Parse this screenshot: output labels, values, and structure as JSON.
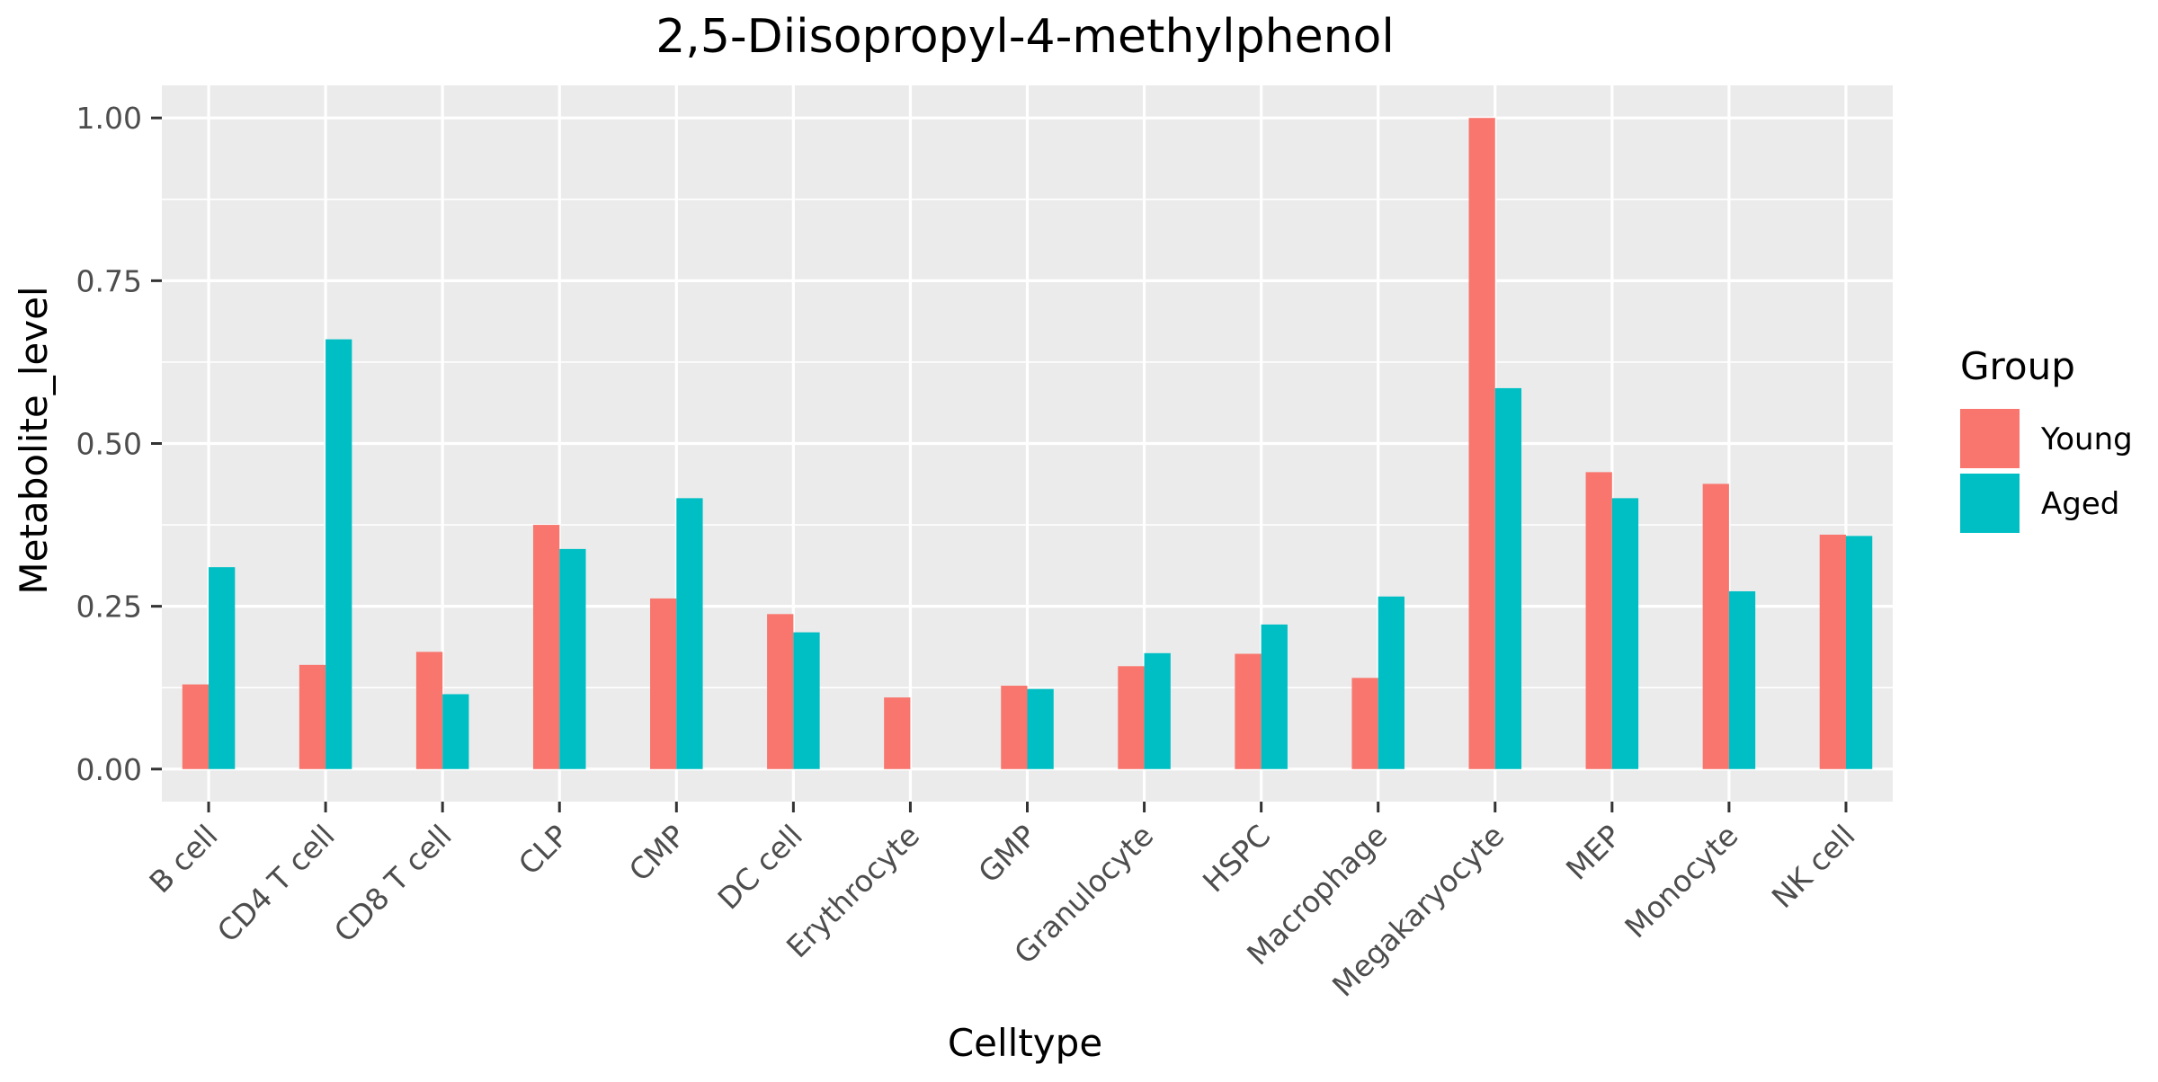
{
  "chart_data": {
    "type": "bar",
    "title": "2,5-Diisopropyl-4-methylphenol",
    "xlabel": "Celltype",
    "ylabel": "Metabolite_level",
    "ylim": [
      -0.05,
      1.05
    ],
    "yticks": [
      0.0,
      0.25,
      0.5,
      0.75,
      1.0
    ],
    "ytick_labels": [
      "0.00",
      "0.25",
      "0.50",
      "0.75",
      "1.00"
    ],
    "grid": true,
    "legend": {
      "title": "Group",
      "position": "right"
    },
    "categories": [
      "B cell",
      "CD4 T cell",
      "CD8 T cell",
      "CLP",
      "CMP",
      "DC cell",
      "Erythrocyte",
      "GMP",
      "Granulocyte",
      "HSPC",
      "Macrophage",
      "Megakaryocyte",
      "MEP",
      "Monocyte",
      "NK cell"
    ],
    "series": [
      {
        "name": "Young",
        "color": "#F8766D",
        "values": [
          0.13,
          0.16,
          0.18,
          0.375,
          0.262,
          0.238,
          0.11,
          0.128,
          0.158,
          0.177,
          0.14,
          1.0,
          0.456,
          0.438,
          0.36
        ]
      },
      {
        "name": "Aged",
        "color": "#00BFC4",
        "values": [
          0.31,
          0.66,
          0.115,
          0.338,
          0.416,
          0.21,
          null,
          0.123,
          0.178,
          0.222,
          0.265,
          0.585,
          0.416,
          0.273,
          0.358
        ]
      }
    ]
  }
}
